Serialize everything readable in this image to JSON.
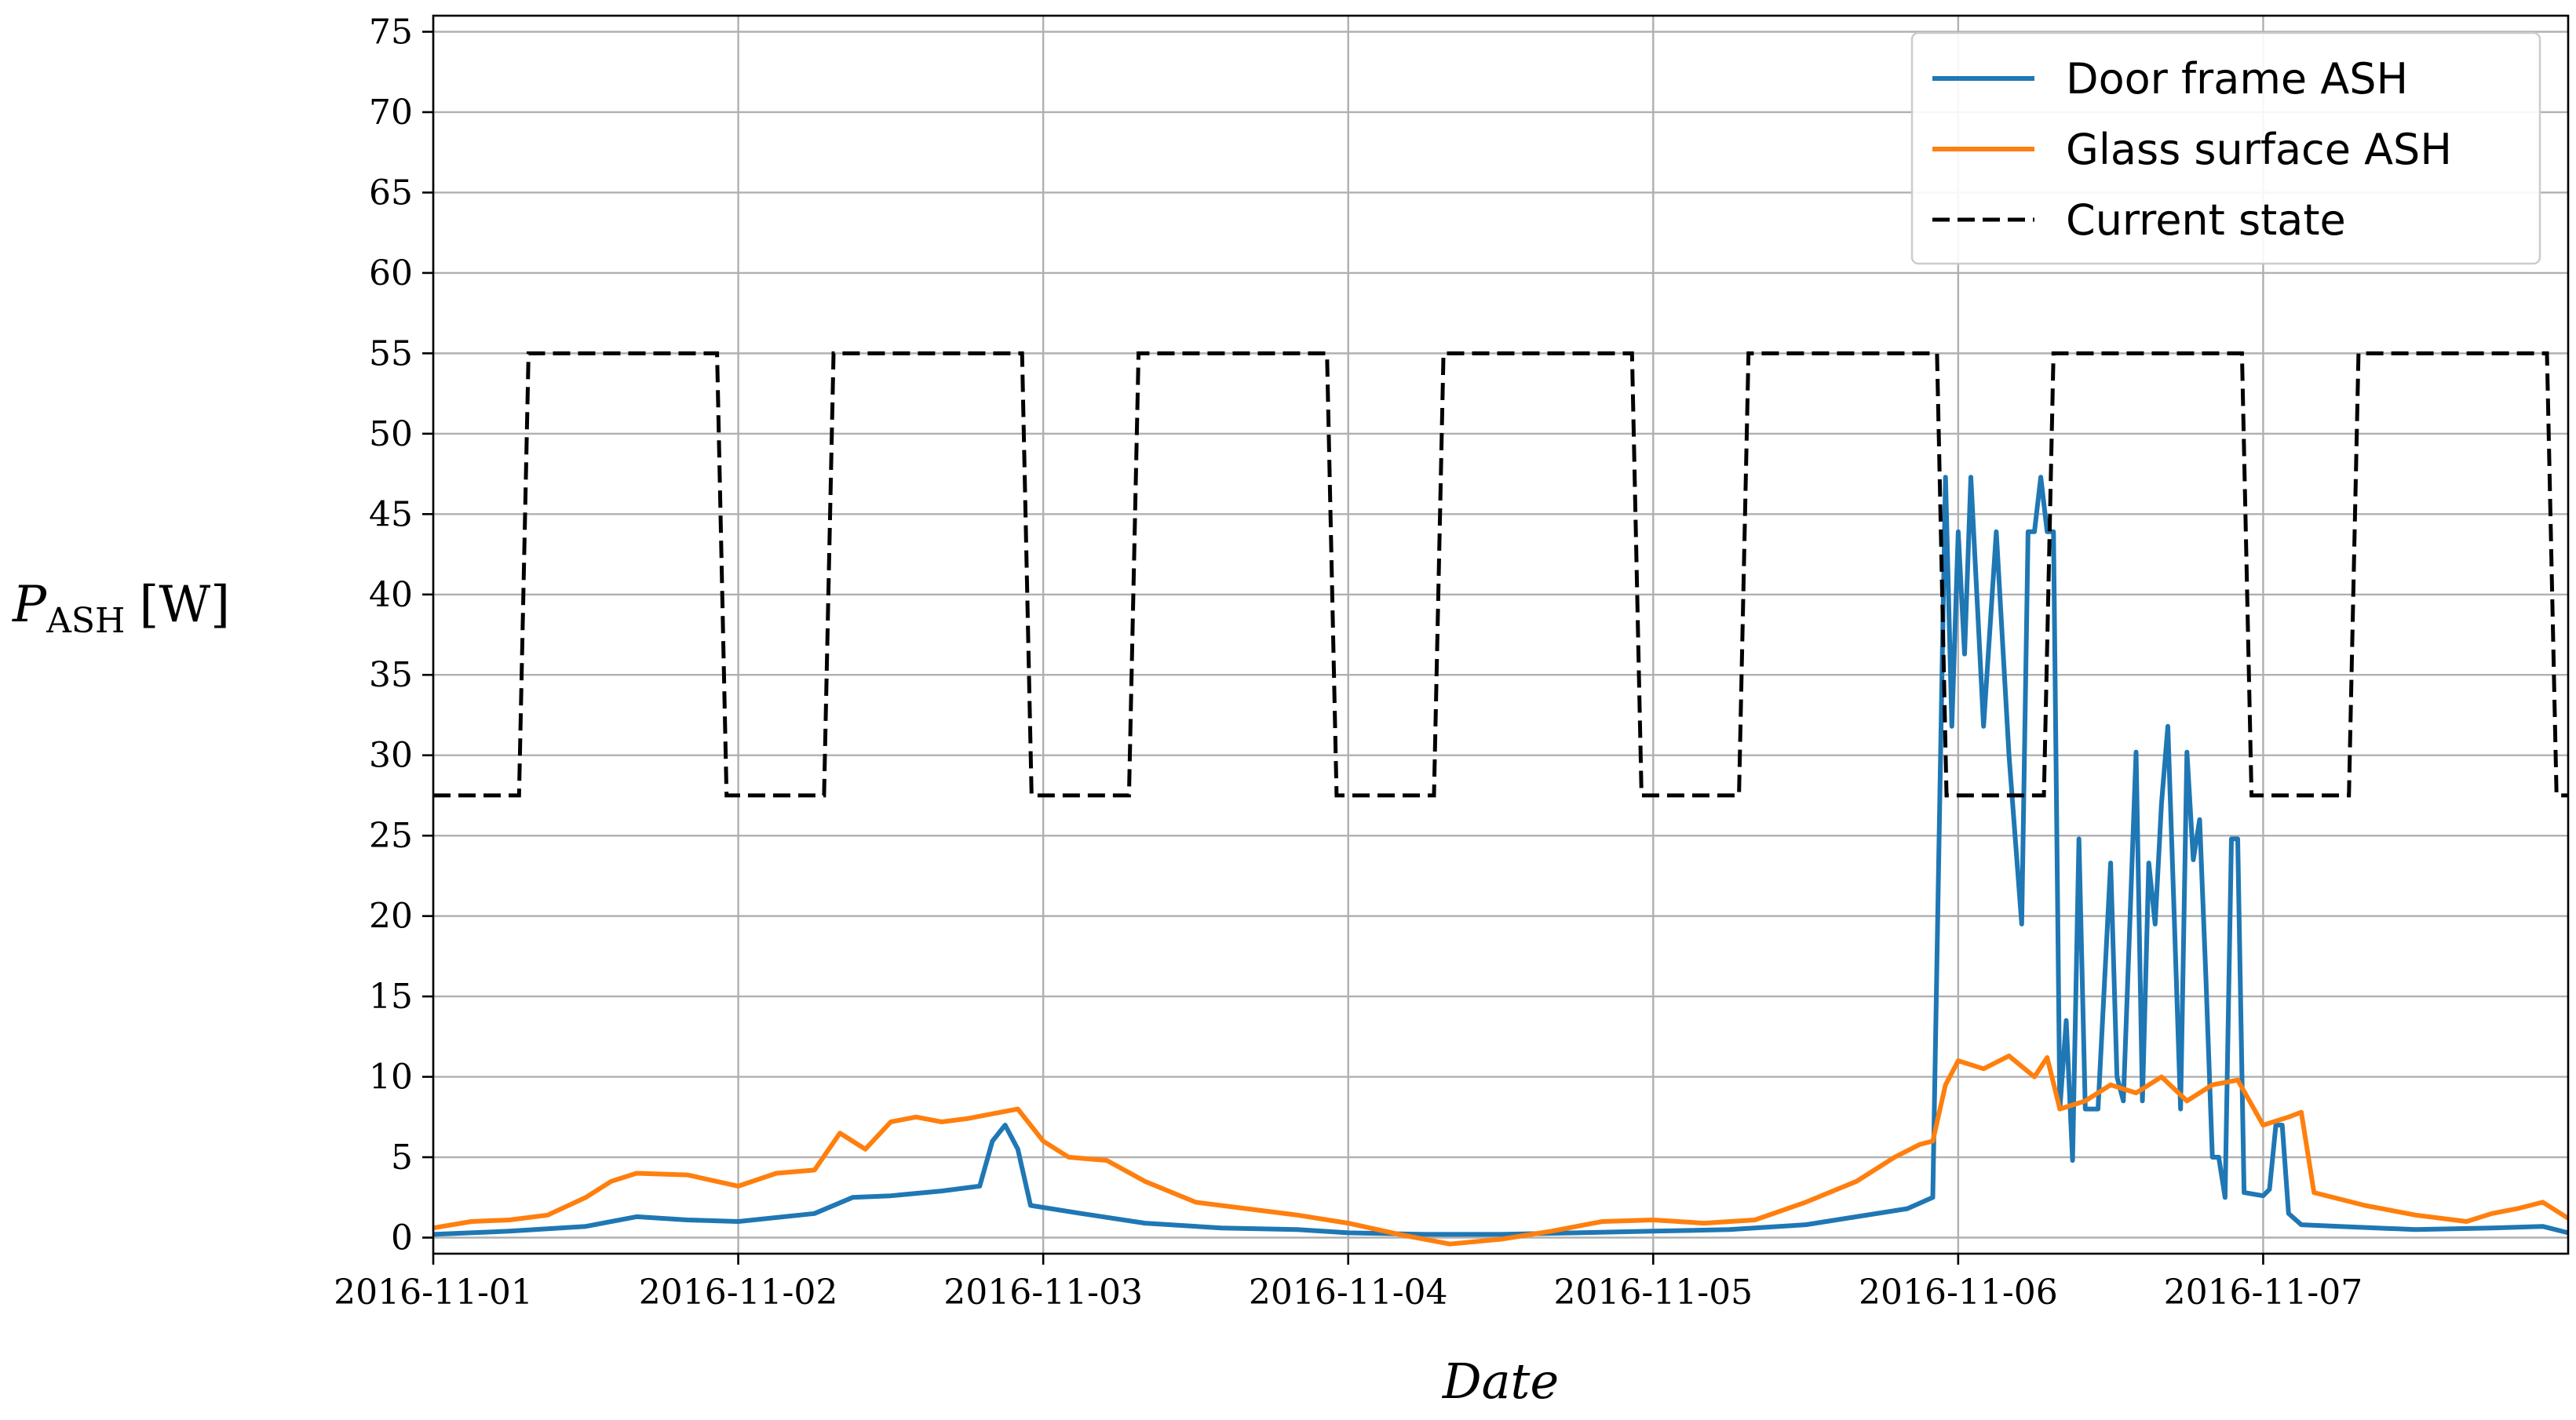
{
  "chart_data": {
    "type": "line",
    "title": "",
    "xlabel": "Date",
    "ylabel": {
      "main": "P",
      "subscript": "ASH",
      "unit": "[W]"
    },
    "x_range": [
      "2016-11-01T00:00",
      "2016-11-08T00:00"
    ],
    "ylim": [
      -1,
      76
    ],
    "yticks": [
      0,
      5,
      10,
      15,
      20,
      25,
      30,
      35,
      40,
      45,
      50,
      55,
      60,
      65,
      70,
      75
    ],
    "xticks": [
      "2016-11-01",
      "2016-11-02",
      "2016-11-03",
      "2016-11-04",
      "2016-11-05",
      "2016-11-06",
      "2016-11-07"
    ],
    "grid": true,
    "legend_position": "top-right",
    "series": [
      {
        "name": "Door frame ASH",
        "color": "#1f77b4",
        "style": "solid",
        "points": [
          [
            "2016-11-01T00:00",
            0.2
          ],
          [
            "2016-11-01T06:00",
            0.4
          ],
          [
            "2016-11-01T12:00",
            0.7
          ],
          [
            "2016-11-01T16:00",
            1.3
          ],
          [
            "2016-11-01T20:00",
            1.1
          ],
          [
            "2016-11-02T00:00",
            1.0
          ],
          [
            "2016-11-02T06:00",
            1.5
          ],
          [
            "2016-11-02T09:00",
            2.5
          ],
          [
            "2016-11-02T12:00",
            2.6
          ],
          [
            "2016-11-02T16:00",
            2.9
          ],
          [
            "2016-11-02T19:00",
            3.2
          ],
          [
            "2016-11-02T20:00",
            6.0
          ],
          [
            "2016-11-02T21:00",
            7.0
          ],
          [
            "2016-11-02T22:00",
            5.5
          ],
          [
            "2016-11-02T23:00",
            2.0
          ],
          [
            "2016-11-03T03:00",
            1.5
          ],
          [
            "2016-11-03T08:00",
            0.9
          ],
          [
            "2016-11-03T14:00",
            0.6
          ],
          [
            "2016-11-03T20:00",
            0.5
          ],
          [
            "2016-11-04T00:00",
            0.3
          ],
          [
            "2016-11-04T06:00",
            0.2
          ],
          [
            "2016-11-04T12:00",
            0.2
          ],
          [
            "2016-11-04T18:00",
            0.3
          ],
          [
            "2016-11-05T00:00",
            0.4
          ],
          [
            "2016-11-05T06:00",
            0.5
          ],
          [
            "2016-11-05T12:00",
            0.8
          ],
          [
            "2016-11-05T16:00",
            1.3
          ],
          [
            "2016-11-05T20:00",
            1.8
          ],
          [
            "2016-11-05T22:00",
            2.5
          ],
          [
            "2016-11-05T22:30",
            25.0
          ],
          [
            "2016-11-05T23:00",
            47.3
          ],
          [
            "2016-11-05T23:30",
            31.8
          ],
          [
            "2016-11-06T00:00",
            43.9
          ],
          [
            "2016-11-06T00:30",
            36.3
          ],
          [
            "2016-11-06T01:00",
            47.3
          ],
          [
            "2016-11-06T02:00",
            31.8
          ],
          [
            "2016-11-06T03:00",
            43.9
          ],
          [
            "2016-11-06T04:00",
            30.0
          ],
          [
            "2016-11-06T05:00",
            19.5
          ],
          [
            "2016-11-06T05:30",
            43.9
          ],
          [
            "2016-11-06T06:00",
            43.9
          ],
          [
            "2016-11-06T06:30",
            47.3
          ],
          [
            "2016-11-06T07:00",
            43.9
          ],
          [
            "2016-11-06T07:30",
            43.9
          ],
          [
            "2016-11-06T08:00",
            8.0
          ],
          [
            "2016-11-06T08:30",
            13.5
          ],
          [
            "2016-11-06T09:00",
            4.8
          ],
          [
            "2016-11-06T09:30",
            24.8
          ],
          [
            "2016-11-06T10:00",
            8.0
          ],
          [
            "2016-11-06T11:00",
            8.0
          ],
          [
            "2016-11-06T12:00",
            23.3
          ],
          [
            "2016-11-06T12:30",
            10.0
          ],
          [
            "2016-11-06T13:00",
            8.5
          ],
          [
            "2016-11-06T14:00",
            30.2
          ],
          [
            "2016-11-06T14:30",
            8.5
          ],
          [
            "2016-11-06T15:00",
            23.3
          ],
          [
            "2016-11-06T15:30",
            19.5
          ],
          [
            "2016-11-06T16:00",
            27.0
          ],
          [
            "2016-11-06T16:30",
            31.8
          ],
          [
            "2016-11-06T17:00",
            20.0
          ],
          [
            "2016-11-06T17:30",
            8.0
          ],
          [
            "2016-11-06T18:00",
            30.2
          ],
          [
            "2016-11-06T18:30",
            23.5
          ],
          [
            "2016-11-06T19:00",
            26.0
          ],
          [
            "2016-11-06T19:30",
            16.0
          ],
          [
            "2016-11-06T20:00",
            5.0
          ],
          [
            "2016-11-06T20:30",
            5.0
          ],
          [
            "2016-11-06T21:00",
            2.5
          ],
          [
            "2016-11-06T21:30",
            24.8
          ],
          [
            "2016-11-06T22:00",
            24.8
          ],
          [
            "2016-11-06T22:30",
            2.8
          ],
          [
            "2016-11-07T00:00",
            2.6
          ],
          [
            "2016-11-07T00:30",
            3.0
          ],
          [
            "2016-11-07T01:00",
            7.0
          ],
          [
            "2016-11-07T01:30",
            7.0
          ],
          [
            "2016-11-07T02:00",
            1.5
          ],
          [
            "2016-11-07T03:00",
            0.8
          ],
          [
            "2016-11-07T06:00",
            0.7
          ],
          [
            "2016-11-07T12:00",
            0.5
          ],
          [
            "2016-11-07T18:00",
            0.6
          ],
          [
            "2016-11-07T22:00",
            0.7
          ],
          [
            "2016-11-08T00:00",
            0.3
          ]
        ]
      },
      {
        "name": "Glass surface ASH",
        "color": "#ff7f0e",
        "style": "solid",
        "points": [
          [
            "2016-11-01T00:00",
            0.6
          ],
          [
            "2016-11-01T03:00",
            1.0
          ],
          [
            "2016-11-01T06:00",
            1.1
          ],
          [
            "2016-11-01T09:00",
            1.4
          ],
          [
            "2016-11-01T12:00",
            2.5
          ],
          [
            "2016-11-01T14:00",
            3.5
          ],
          [
            "2016-11-01T16:00",
            4.0
          ],
          [
            "2016-11-01T20:00",
            3.9
          ],
          [
            "2016-11-02T00:00",
            3.2
          ],
          [
            "2016-11-02T03:00",
            4.0
          ],
          [
            "2016-11-02T06:00",
            4.2
          ],
          [
            "2016-11-02T08:00",
            6.5
          ],
          [
            "2016-11-02T10:00",
            5.5
          ],
          [
            "2016-11-02T12:00",
            7.2
          ],
          [
            "2016-11-02T14:00",
            7.5
          ],
          [
            "2016-11-02T16:00",
            7.2
          ],
          [
            "2016-11-02T18:00",
            7.4
          ],
          [
            "2016-11-02T20:00",
            7.7
          ],
          [
            "2016-11-02T22:00",
            8.0
          ],
          [
            "2016-11-03T00:00",
            6.0
          ],
          [
            "2016-11-03T02:00",
            5.0
          ],
          [
            "2016-11-03T05:00",
            4.8
          ],
          [
            "2016-11-03T08:00",
            3.5
          ],
          [
            "2016-11-03T12:00",
            2.2
          ],
          [
            "2016-11-03T16:00",
            1.8
          ],
          [
            "2016-11-03T20:00",
            1.4
          ],
          [
            "2016-11-04T00:00",
            0.9
          ],
          [
            "2016-11-04T04:00",
            0.2
          ],
          [
            "2016-11-04T08:00",
            -0.4
          ],
          [
            "2016-11-04T12:00",
            -0.1
          ],
          [
            "2016-11-04T16:00",
            0.4
          ],
          [
            "2016-11-04T20:00",
            1.0
          ],
          [
            "2016-11-05T00:00",
            1.1
          ],
          [
            "2016-11-05T04:00",
            0.9
          ],
          [
            "2016-11-05T08:00",
            1.1
          ],
          [
            "2016-11-05T12:00",
            2.2
          ],
          [
            "2016-11-05T16:00",
            3.5
          ],
          [
            "2016-11-05T19:00",
            5.0
          ],
          [
            "2016-11-05T21:00",
            5.8
          ],
          [
            "2016-11-05T22:00",
            6.0
          ],
          [
            "2016-11-05T23:00",
            9.5
          ],
          [
            "2016-11-06T00:00",
            11.0
          ],
          [
            "2016-11-06T02:00",
            10.5
          ],
          [
            "2016-11-06T04:00",
            11.3
          ],
          [
            "2016-11-06T06:00",
            10.0
          ],
          [
            "2016-11-06T07:00",
            11.2
          ],
          [
            "2016-11-06T08:00",
            8.0
          ],
          [
            "2016-11-06T10:00",
            8.5
          ],
          [
            "2016-11-06T12:00",
            9.5
          ],
          [
            "2016-11-06T14:00",
            9.0
          ],
          [
            "2016-11-06T16:00",
            10.0
          ],
          [
            "2016-11-06T18:00",
            8.5
          ],
          [
            "2016-11-06T20:00",
            9.5
          ],
          [
            "2016-11-06T22:00",
            9.8
          ],
          [
            "2016-11-07T00:00",
            7.0
          ],
          [
            "2016-11-07T02:00",
            7.5
          ],
          [
            "2016-11-07T03:00",
            7.8
          ],
          [
            "2016-11-07T04:00",
            2.8
          ],
          [
            "2016-11-07T08:00",
            2.0
          ],
          [
            "2016-11-07T12:00",
            1.4
          ],
          [
            "2016-11-07T16:00",
            1.0
          ],
          [
            "2016-11-07T18:00",
            1.5
          ],
          [
            "2016-11-07T20:00",
            1.8
          ],
          [
            "2016-11-07T22:00",
            2.2
          ],
          [
            "2016-11-08T00:00",
            1.2
          ]
        ]
      },
      {
        "name": "Current state",
        "color": "#000000",
        "style": "dashed",
        "points": [
          [
            "2016-11-01T00:00",
            27.5
          ],
          [
            "2016-11-01T06:45",
            27.5
          ],
          [
            "2016-11-01T07:30",
            55.0
          ],
          [
            "2016-11-01T22:20",
            55.0
          ],
          [
            "2016-11-01T23:05",
            27.5
          ],
          [
            "2016-11-02T06:45",
            27.5
          ],
          [
            "2016-11-02T07:30",
            55.0
          ],
          [
            "2016-11-02T22:20",
            55.0
          ],
          [
            "2016-11-02T23:05",
            27.5
          ],
          [
            "2016-11-03T06:45",
            27.5
          ],
          [
            "2016-11-03T07:30",
            55.0
          ],
          [
            "2016-11-03T22:20",
            55.0
          ],
          [
            "2016-11-03T23:05",
            27.5
          ],
          [
            "2016-11-04T06:45",
            27.5
          ],
          [
            "2016-11-04T07:30",
            55.0
          ],
          [
            "2016-11-04T22:20",
            55.0
          ],
          [
            "2016-11-04T23:05",
            27.5
          ],
          [
            "2016-11-05T06:45",
            27.5
          ],
          [
            "2016-11-05T07:30",
            55.0
          ],
          [
            "2016-11-05T22:20",
            55.0
          ],
          [
            "2016-11-05T23:05",
            27.5
          ],
          [
            "2016-11-06T06:45",
            27.5
          ],
          [
            "2016-11-06T07:30",
            55.0
          ],
          [
            "2016-11-06T22:20",
            55.0
          ],
          [
            "2016-11-06T23:05",
            27.5
          ],
          [
            "2016-11-07T06:45",
            27.5
          ],
          [
            "2016-11-07T07:30",
            55.0
          ],
          [
            "2016-11-07T22:20",
            55.0
          ],
          [
            "2016-11-07T23:05",
            27.5
          ],
          [
            "2016-11-08T00:00",
            27.5
          ]
        ]
      }
    ]
  }
}
